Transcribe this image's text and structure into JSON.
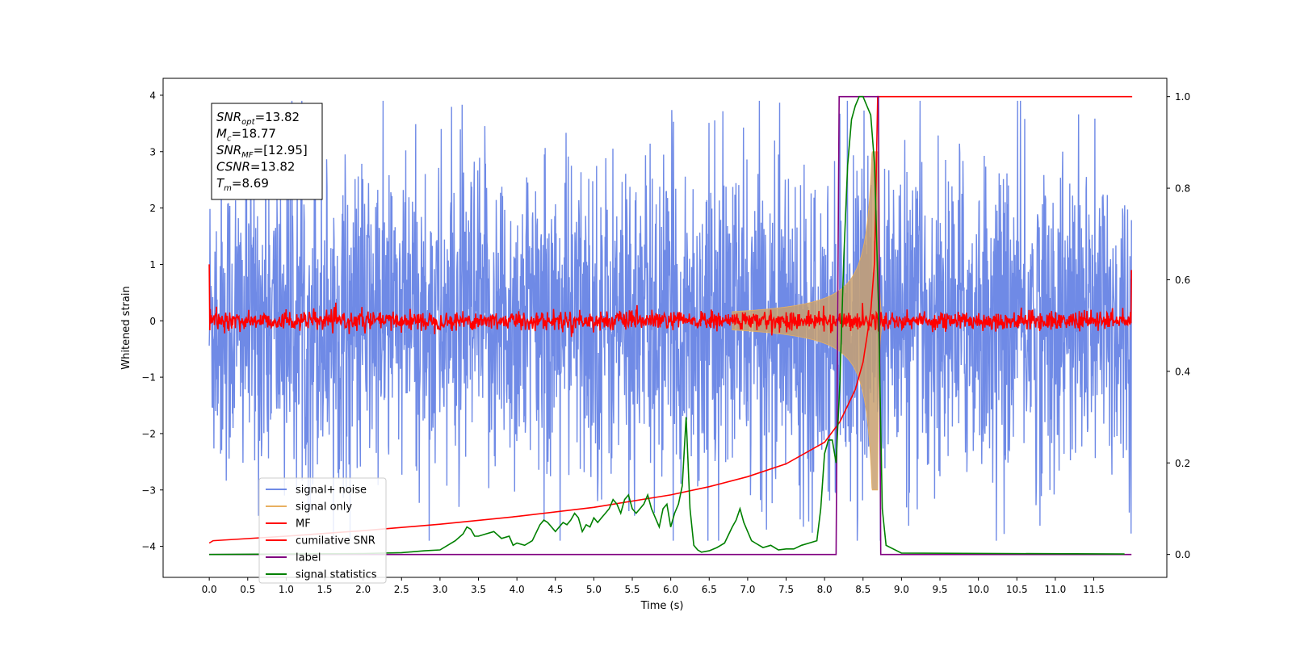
{
  "chart_data": {
    "type": "line",
    "xlabel": "Time (s)",
    "ylabel": "Whitened strain",
    "xlim": [
      -0.6,
      12.45
    ],
    "ylim": [
      -4.55,
      4.3
    ],
    "y2lim": [
      -0.05,
      1.04
    ],
    "x_ticks": [
      0.0,
      0.5,
      1.0,
      1.5,
      2.0,
      2.5,
      3.0,
      3.5,
      4.0,
      4.5,
      5.0,
      5.5,
      6.0,
      6.5,
      7.0,
      7.5,
      8.0,
      8.5,
      9.0,
      9.5,
      10.0,
      10.5,
      11.0,
      11.5
    ],
    "x_tick_labels": [
      "0.0",
      "0.5",
      "1.0",
      "1.5",
      "2.0",
      "2.5",
      "3.0",
      "3.5",
      "4.0",
      "4.5",
      "5.0",
      "5.5",
      "6.0",
      "6.5",
      "7.0",
      "7.5",
      "8.0",
      "8.5",
      "9.0",
      "9.5",
      "10.0",
      "10.5",
      "11.0",
      "11.5"
    ],
    "y_ticks": [
      -4,
      -3,
      -2,
      -1,
      0,
      1,
      2,
      3,
      4
    ],
    "y_tick_labels": [
      "−4",
      "−3",
      "−2",
      "−1",
      "0",
      "1",
      "2",
      "3",
      "4"
    ],
    "y2_ticks": [
      0.0,
      0.2,
      0.4,
      0.6,
      0.8,
      1.0
    ],
    "y2_tick_labels": [
      "0.0",
      "0.2",
      "0.4",
      "0.6",
      "0.8",
      "1.0"
    ],
    "annotation": [
      {
        "base": "SNR",
        "sub": "opt",
        "rest": "=13.82"
      },
      {
        "base": "M",
        "sub": "c",
        "rest": "=18.77"
      },
      {
        "base": "SNR",
        "sub": "MF",
        "rest": "=[12.95]"
      },
      {
        "base": "CSNR",
        "sub": "",
        "rest": "=13.82"
      },
      {
        "base": "T",
        "sub": "m",
        "rest": "=8.69"
      }
    ],
    "legend_position": "lower-left",
    "series": [
      {
        "name": "signal+ noise",
        "color": "#6f8ae6",
        "axis": "left",
        "kind": "noise",
        "t_range": [
          0,
          11.99
        ],
        "amplitude_typical": 1.5,
        "amplitude_max": 3.9
      },
      {
        "name": "signal only",
        "color": "#e8b060",
        "axis": "left",
        "kind": "chirp",
        "t_merger": 8.69,
        "peak_amplitude": 3.0
      },
      {
        "name": "MF",
        "color": "#ff0000",
        "axis": "left",
        "kind": "mf",
        "t_range": [
          0,
          11.99
        ],
        "edge_value": 1.0,
        "noise_amplitude": 0.12
      },
      {
        "name": "cumilative SNR",
        "color": "#ff0000",
        "axis": "right",
        "x": [
          0,
          0.05,
          1,
          2,
          3,
          4,
          5,
          6,
          6.5,
          7,
          7.5,
          8,
          8.2,
          8.4,
          8.5,
          8.6,
          8.65,
          8.69,
          12
        ],
        "y": [
          0.025,
          0.03,
          0.04,
          0.052,
          0.066,
          0.083,
          0.103,
          0.13,
          0.148,
          0.17,
          0.198,
          0.245,
          0.29,
          0.36,
          0.42,
          0.53,
          0.64,
          1.0,
          1.0
        ]
      },
      {
        "name": "label",
        "color": "#800080",
        "axis": "right",
        "x": [
          0,
          8.15,
          8.19,
          8.7,
          8.73,
          11.99
        ],
        "y": [
          0,
          0,
          1,
          1,
          0,
          0
        ]
      },
      {
        "name": "signal statistics",
        "color": "#008000",
        "axis": "right",
        "x": [
          0,
          1,
          2,
          2.5,
          2.8,
          3.0,
          3.1,
          3.2,
          3.3,
          3.35,
          3.4,
          3.45,
          3.5,
          3.6,
          3.7,
          3.8,
          3.9,
          3.95,
          4.0,
          4.1,
          4.2,
          4.3,
          4.35,
          4.4,
          4.5,
          4.55,
          4.6,
          4.65,
          4.7,
          4.75,
          4.8,
          4.85,
          4.9,
          4.95,
          5.0,
          5.05,
          5.1,
          5.15,
          5.2,
          5.25,
          5.3,
          5.35,
          5.4,
          5.45,
          5.5,
          5.55,
          5.6,
          5.65,
          5.7,
          5.75,
          5.8,
          5.85,
          5.9,
          5.95,
          6.0,
          6.05,
          6.1,
          6.15,
          6.2,
          6.25,
          6.3,
          6.35,
          6.4,
          6.5,
          6.6,
          6.7,
          6.8,
          6.85,
          6.9,
          6.95,
          7.0,
          7.05,
          7.1,
          7.2,
          7.3,
          7.4,
          7.5,
          7.6,
          7.7,
          7.8,
          7.9,
          7.95,
          8.0,
          8.05,
          8.1,
          8.15,
          8.2,
          8.25,
          8.3,
          8.35,
          8.4,
          8.45,
          8.5,
          8.55,
          8.6,
          8.65,
          8.7,
          8.75,
          8.8,
          9.0,
          11.9
        ],
        "y": [
          0,
          0.001,
          0.002,
          0.004,
          0.008,
          0.01,
          0.02,
          0.03,
          0.045,
          0.06,
          0.055,
          0.04,
          0.04,
          0.045,
          0.05,
          0.035,
          0.04,
          0.02,
          0.025,
          0.02,
          0.03,
          0.065,
          0.075,
          0.07,
          0.05,
          0.06,
          0.07,
          0.065,
          0.075,
          0.09,
          0.08,
          0.05,
          0.065,
          0.06,
          0.08,
          0.07,
          0.08,
          0.09,
          0.1,
          0.12,
          0.11,
          0.09,
          0.12,
          0.13,
          0.1,
          0.09,
          0.1,
          0.11,
          0.13,
          0.1,
          0.08,
          0.06,
          0.1,
          0.11,
          0.06,
          0.09,
          0.11,
          0.15,
          0.3,
          0.1,
          0.02,
          0.01,
          0.005,
          0.008,
          0.015,
          0.025,
          0.06,
          0.075,
          0.1,
          0.07,
          0.05,
          0.03,
          0.025,
          0.015,
          0.02,
          0.01,
          0.012,
          0.012,
          0.02,
          0.025,
          0.03,
          0.1,
          0.22,
          0.25,
          0.25,
          0.2,
          0.38,
          0.65,
          0.85,
          0.95,
          0.98,
          1.0,
          1.0,
          0.98,
          0.96,
          0.85,
          0.55,
          0.1,
          0.02,
          0.003,
          0.001
        ]
      }
    ]
  }
}
